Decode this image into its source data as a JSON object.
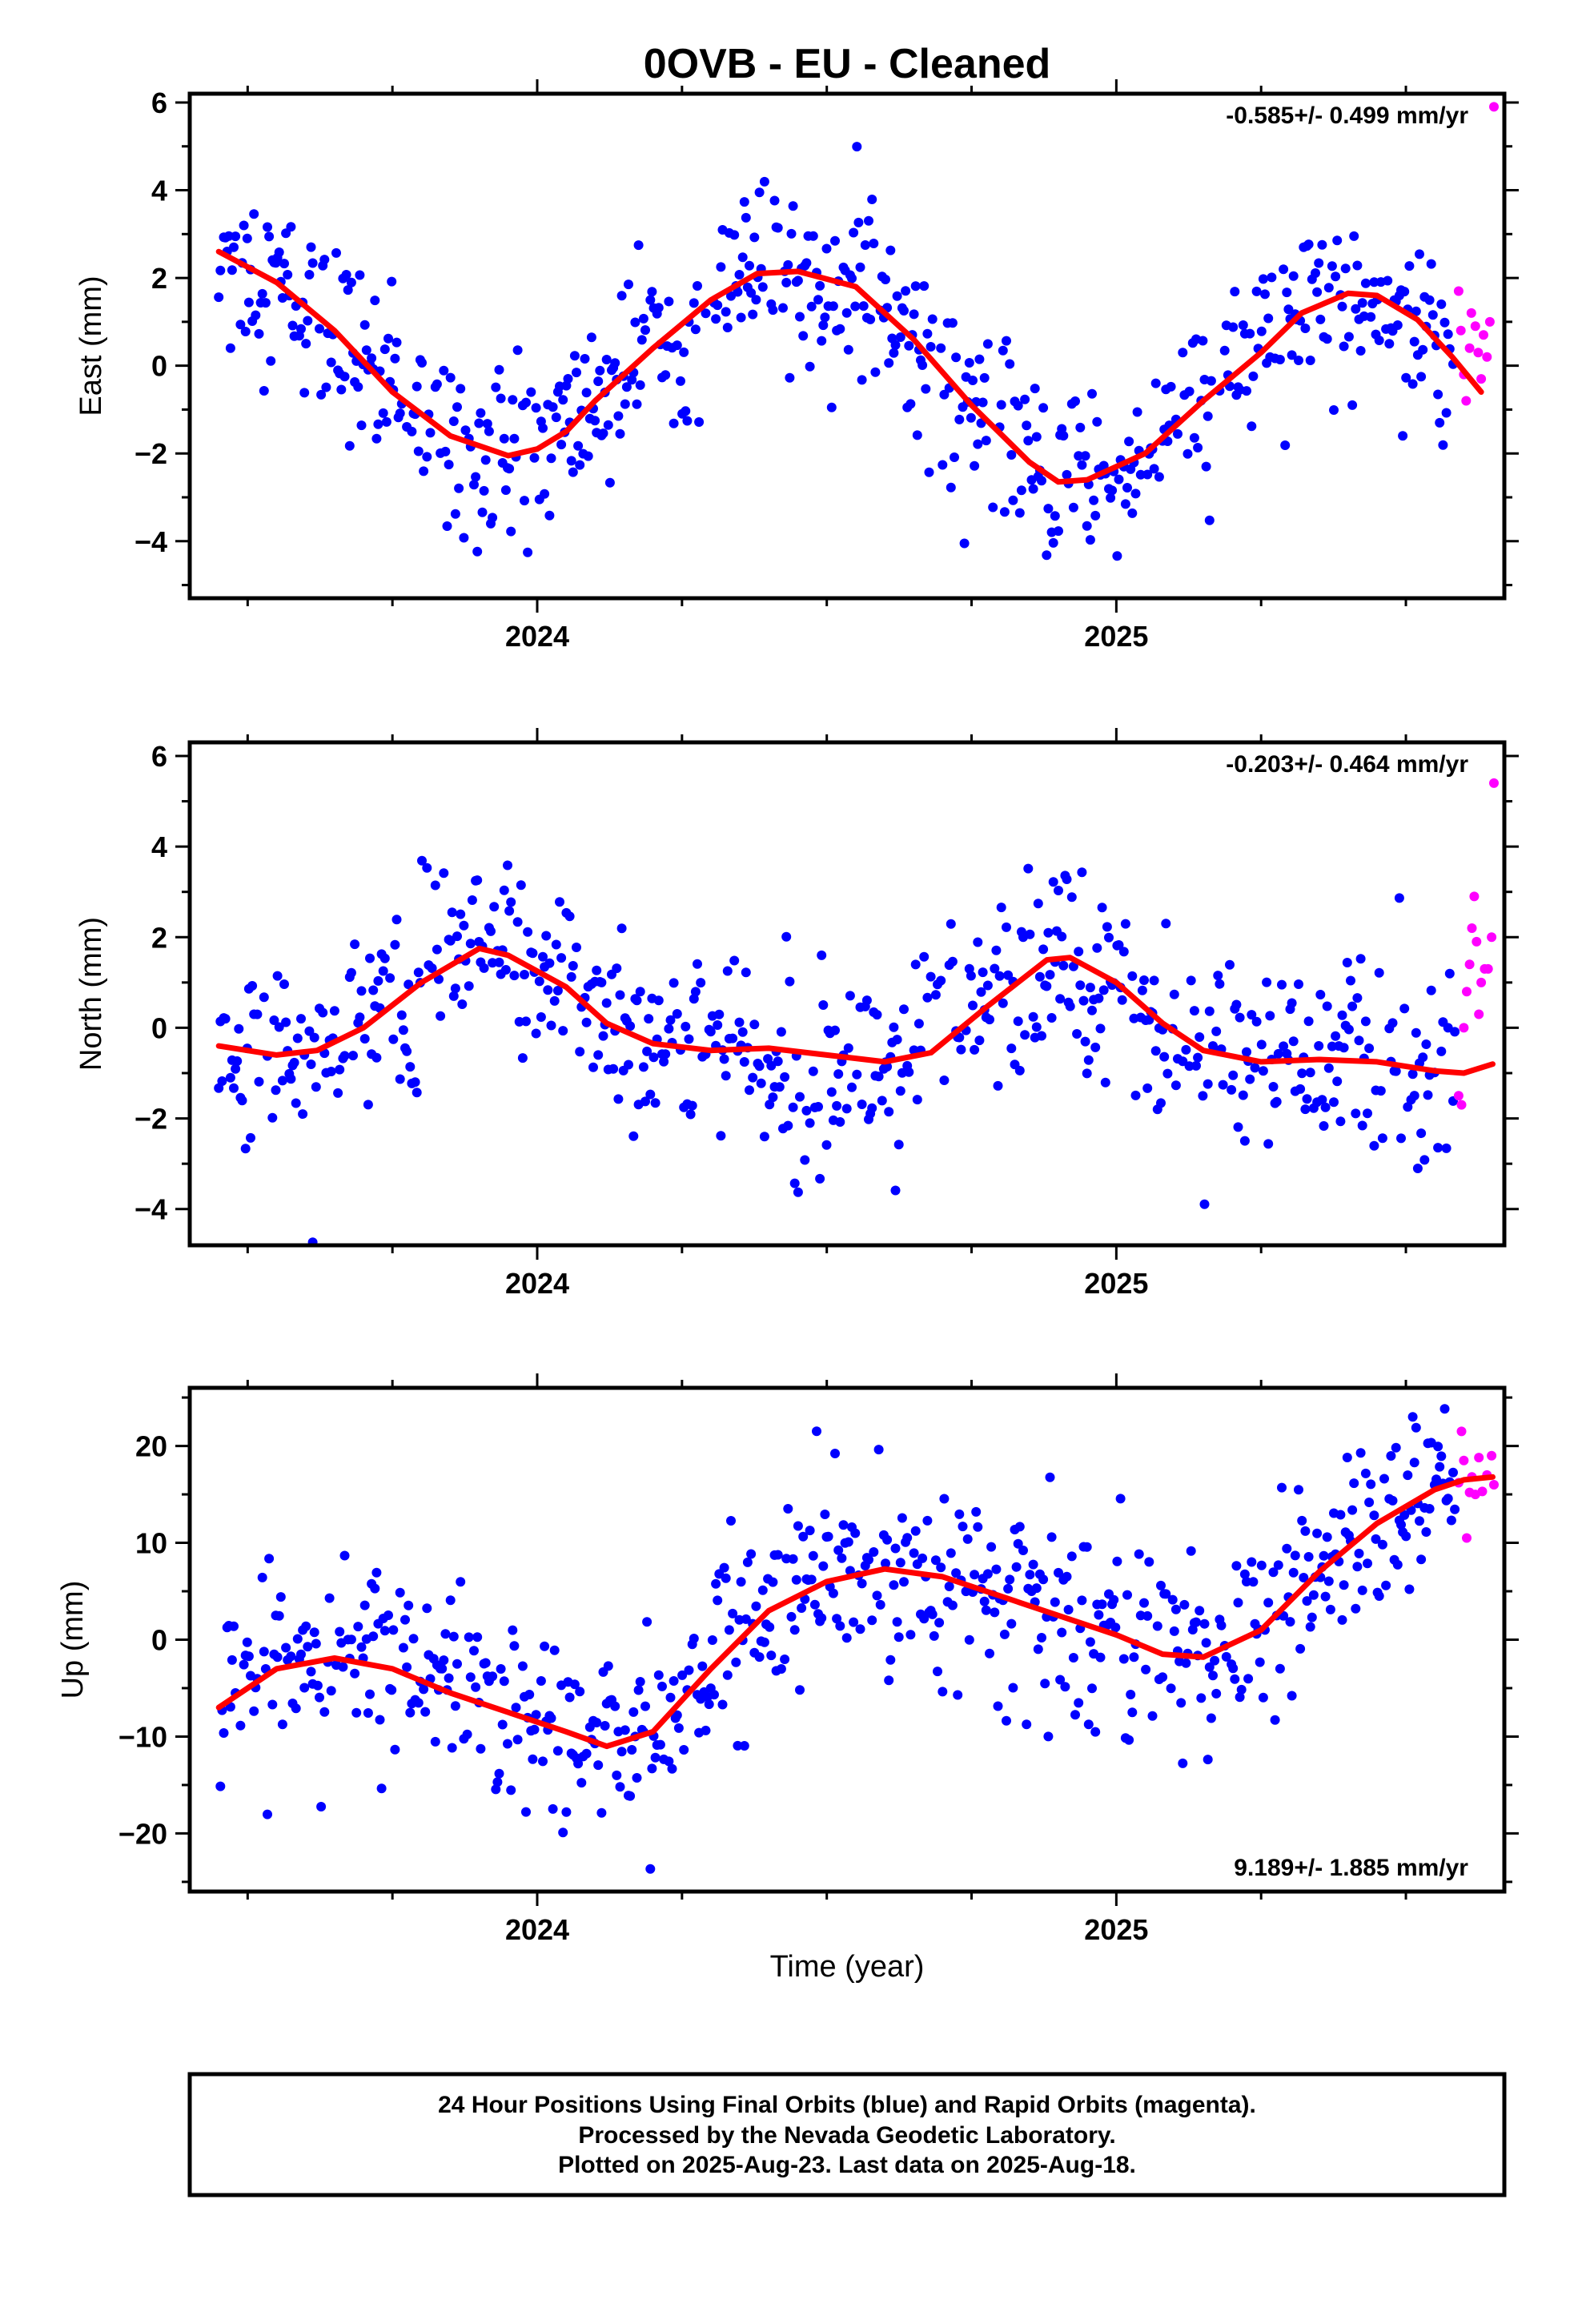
{
  "title": "0OVB  - EU - Cleaned",
  "xlabel": "Time (year)",
  "caption": [
    "24 Hour Positions Using Final Orbits (blue) and Rapid Orbits (magenta).",
    "Processed by the Nevada Geodetic Laboratory.",
    "Plotted on 2025-Aug-23. Last data on 2025-Aug-18."
  ],
  "colors": {
    "final": "#0000ff",
    "rapid": "#ff00ff",
    "model": "#ff0000",
    "frame": "#000000"
  },
  "chart_data": [
    {
      "type": "scatter",
      "panel": "east",
      "ylabel": "East (mm)",
      "rate_text": "-0.585+/- 0.499 mm/yr",
      "rate_position": "top-right",
      "xlim": [
        2023.4,
        2025.67
      ],
      "ylim": [
        -5.3,
        6.2
      ],
      "x_tick_labels": [
        "2024",
        "2025"
      ],
      "y_ticks": [
        -4,
        -2,
        0,
        2,
        4,
        6
      ],
      "grid": false,
      "model_fit": [
        [
          2023.45,
          2.6
        ],
        [
          2023.55,
          1.9
        ],
        [
          2023.65,
          0.8
        ],
        [
          2023.75,
          -0.6
        ],
        [
          2023.85,
          -1.6
        ],
        [
          2023.95,
          -2.05
        ],
        [
          2024.0,
          -1.9
        ],
        [
          2024.05,
          -1.5
        ],
        [
          2024.1,
          -0.8
        ],
        [
          2024.2,
          0.4
        ],
        [
          2024.3,
          1.5
        ],
        [
          2024.38,
          2.1
        ],
        [
          2024.45,
          2.15
        ],
        [
          2024.55,
          1.8
        ],
        [
          2024.65,
          0.6
        ],
        [
          2024.75,
          -0.9
        ],
        [
          2024.85,
          -2.2
        ],
        [
          2024.9,
          -2.65
        ],
        [
          2024.95,
          -2.6
        ],
        [
          2025.05,
          -2.0
        ],
        [
          2025.15,
          -0.8
        ],
        [
          2025.25,
          0.3
        ],
        [
          2025.32,
          1.2
        ],
        [
          2025.4,
          1.65
        ],
        [
          2025.45,
          1.6
        ],
        [
          2025.52,
          1.05
        ],
        [
          2025.58,
          0.2
        ],
        [
          2025.63,
          -0.6
        ]
      ],
      "rapid_points": [
        [
          2025.591,
          1.7
        ],
        [
          2025.595,
          0.8
        ],
        [
          2025.6,
          -0.2
        ],
        [
          2025.604,
          -0.8
        ],
        [
          2025.61,
          0.4
        ],
        [
          2025.613,
          1.2
        ],
        [
          2025.62,
          0.9
        ],
        [
          2025.625,
          0.3
        ],
        [
          2025.63,
          -0.3
        ],
        [
          2025.634,
          0.7
        ],
        [
          2025.64,
          0.2
        ],
        [
          2025.645,
          1.0
        ],
        [
          2025.652,
          5.9
        ]
      ]
    },
    {
      "type": "scatter",
      "panel": "north",
      "ylabel": "North (mm)",
      "rate_text": "-0.203+/- 0.464 mm/yr",
      "rate_position": "top-right",
      "xlim": [
        2023.4,
        2025.67
      ],
      "ylim": [
        -4.8,
        6.3
      ],
      "x_tick_labels": [
        "2024",
        "2025"
      ],
      "y_ticks": [
        -4,
        -2,
        0,
        2,
        4,
        6
      ],
      "grid": false,
      "model_fit": [
        [
          2023.45,
          -0.4
        ],
        [
          2023.55,
          -0.6
        ],
        [
          2023.62,
          -0.5
        ],
        [
          2023.7,
          0.0
        ],
        [
          2023.8,
          1.0
        ],
        [
          2023.9,
          1.75
        ],
        [
          2023.95,
          1.6
        ],
        [
          2024.05,
          0.9
        ],
        [
          2024.12,
          0.1
        ],
        [
          2024.2,
          -0.35
        ],
        [
          2024.3,
          -0.5
        ],
        [
          2024.4,
          -0.45
        ],
        [
          2024.5,
          -0.6
        ],
        [
          2024.6,
          -0.75
        ],
        [
          2024.68,
          -0.55
        ],
        [
          2024.78,
          0.5
        ],
        [
          2024.88,
          1.5
        ],
        [
          2024.92,
          1.55
        ],
        [
          2025.0,
          1.0
        ],
        [
          2025.08,
          0.1
        ],
        [
          2025.15,
          -0.5
        ],
        [
          2025.25,
          -0.75
        ],
        [
          2025.35,
          -0.7
        ],
        [
          2025.45,
          -0.75
        ],
        [
          2025.55,
          -0.95
        ],
        [
          2025.6,
          -1.0
        ],
        [
          2025.65,
          -0.8
        ]
      ],
      "rapid_points": [
        [
          2025.591,
          -1.5
        ],
        [
          2025.596,
          -1.7
        ],
        [
          2025.6,
          0.0
        ],
        [
          2025.605,
          0.8
        ],
        [
          2025.61,
          1.4
        ],
        [
          2025.614,
          2.2
        ],
        [
          2025.618,
          2.9
        ],
        [
          2025.622,
          1.9
        ],
        [
          2025.626,
          0.3
        ],
        [
          2025.63,
          1.0
        ],
        [
          2025.636,
          1.3
        ],
        [
          2025.642,
          1.3
        ],
        [
          2025.648,
          2.0
        ],
        [
          2025.652,
          5.4
        ]
      ]
    },
    {
      "type": "scatter",
      "panel": "up",
      "ylabel": "Up (mm)",
      "rate_text": "9.189+/- 1.885 mm/yr",
      "rate_position": "bottom-right",
      "xlim": [
        2023.4,
        2025.67
      ],
      "ylim": [
        -26,
        26
      ],
      "x_tick_labels": [
        "2024",
        "2025"
      ],
      "y_ticks": [
        -20,
        -10,
        0,
        10,
        20
      ],
      "grid": false,
      "model_fit": [
        [
          2023.45,
          -7
        ],
        [
          2023.55,
          -3
        ],
        [
          2023.65,
          -1.9
        ],
        [
          2023.75,
          -3
        ],
        [
          2023.85,
          -5.5
        ],
        [
          2023.95,
          -7.5
        ],
        [
          2024.05,
          -9.5
        ],
        [
          2024.12,
          -11
        ],
        [
          2024.2,
          -9.5
        ],
        [
          2024.3,
          -3
        ],
        [
          2024.4,
          3
        ],
        [
          2024.5,
          6
        ],
        [
          2024.6,
          7.3
        ],
        [
          2024.7,
          6.5
        ],
        [
          2024.8,
          4.5
        ],
        [
          2024.9,
          2.5
        ],
        [
          2025.0,
          0.5
        ],
        [
          2025.08,
          -1.5
        ],
        [
          2025.15,
          -1.8
        ],
        [
          2025.25,
          1
        ],
        [
          2025.35,
          7
        ],
        [
          2025.45,
          12
        ],
        [
          2025.55,
          15.5
        ],
        [
          2025.6,
          16.5
        ],
        [
          2025.65,
          16.8
        ]
      ],
      "rapid_points": [
        [
          2025.591,
          16.2
        ],
        [
          2025.596,
          21.5
        ],
        [
          2025.6,
          18.5
        ],
        [
          2025.605,
          10.5
        ],
        [
          2025.61,
          15.2
        ],
        [
          2025.614,
          16.8
        ],
        [
          2025.62,
          15.0
        ],
        [
          2025.626,
          18.8
        ],
        [
          2025.632,
          15.3
        ],
        [
          2025.64,
          17.0
        ],
        [
          2025.648,
          19.0
        ],
        [
          2025.652,
          16.0
        ]
      ]
    }
  ]
}
